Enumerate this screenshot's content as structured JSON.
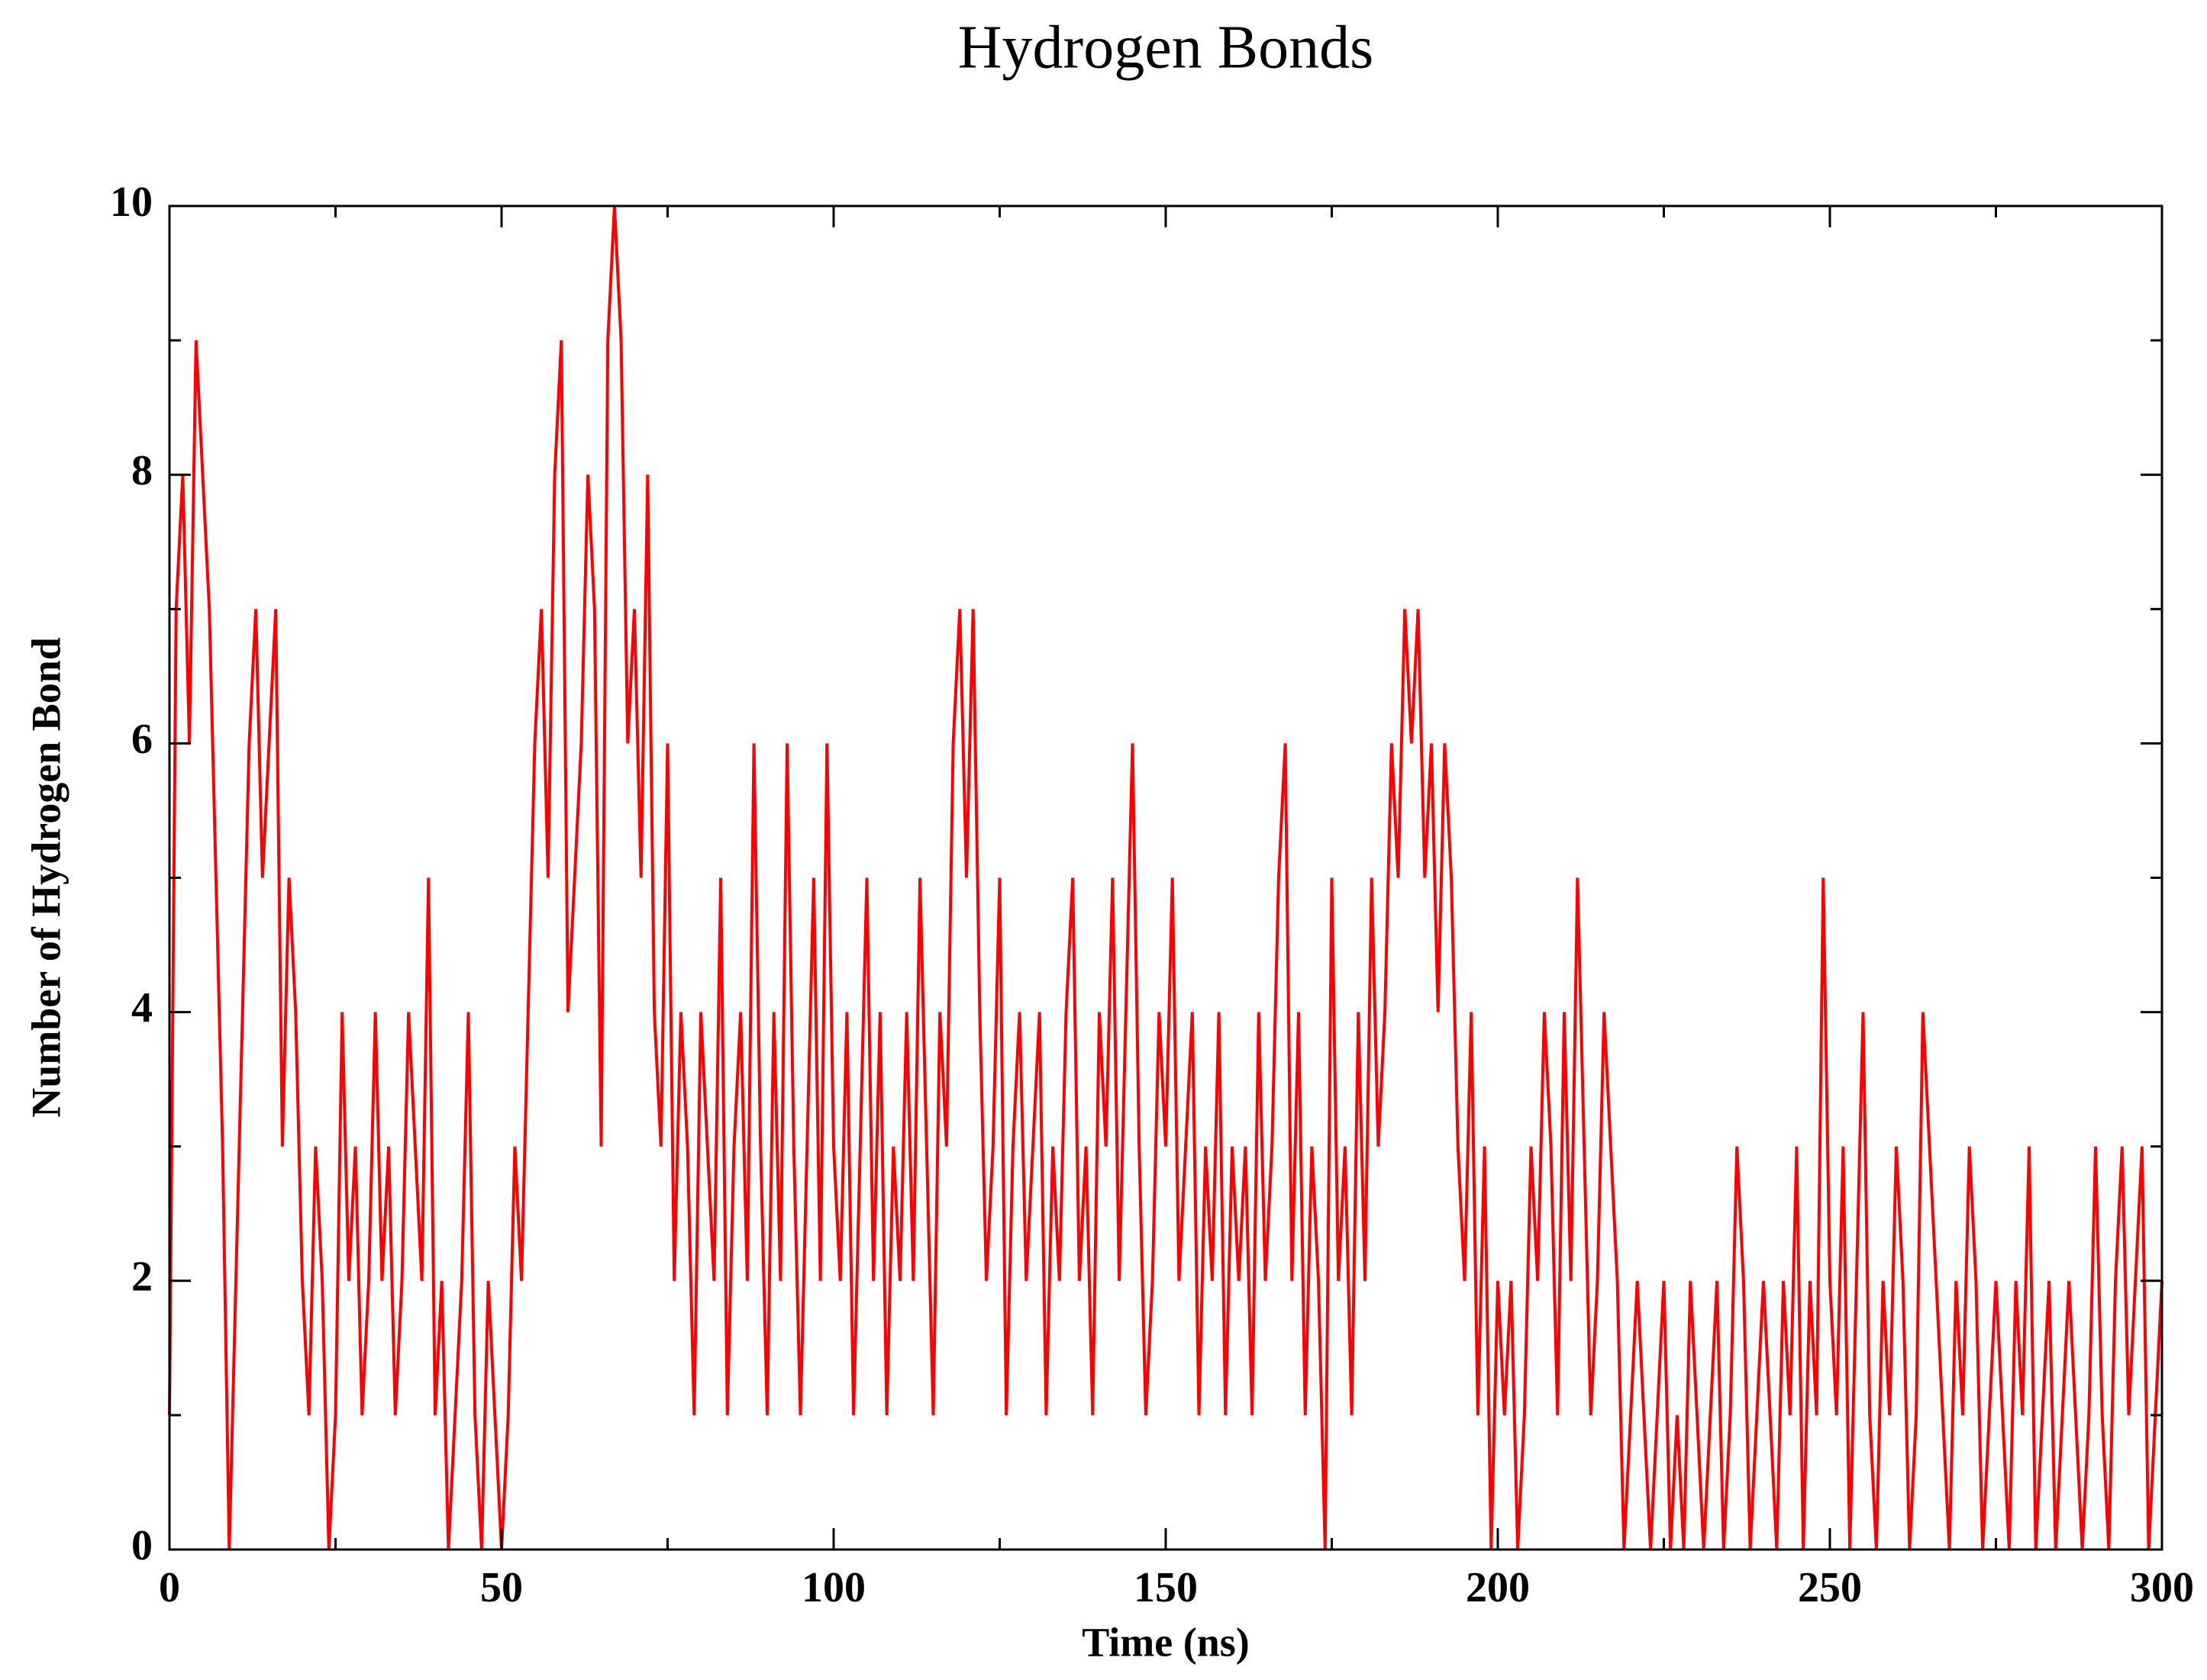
{
  "chart_data": {
    "type": "line",
    "title": "Hydrogen Bonds",
    "x_label": "Time (ns)",
    "y_label": "Number of Hydrogen Bond",
    "xlim": [
      0,
      300
    ],
    "ylim": [
      0,
      10
    ],
    "xticks": [
      0,
      50,
      100,
      150,
      200,
      250,
      300
    ],
    "yticks": [
      0,
      2,
      4,
      6,
      8,
      10
    ],
    "xminorticks": [
      25,
      75,
      125,
      175,
      225,
      275
    ],
    "yminorticks": [
      1,
      3,
      5,
      7,
      9
    ],
    "grid": false,
    "x": [
      0,
      1,
      2,
      3,
      4,
      5,
      6,
      7,
      8,
      9,
      10,
      11,
      12,
      13,
      14,
      15,
      16,
      17,
      18,
      19,
      20,
      21,
      22,
      23,
      24,
      25,
      26,
      27,
      28,
      29,
      30,
      31,
      32,
      33,
      34,
      35,
      36,
      37,
      38,
      39,
      40,
      41,
      42,
      43,
      44,
      45,
      46,
      47,
      48,
      49,
      50,
      51,
      52,
      53,
      54,
      55,
      56,
      57,
      58,
      59,
      60,
      61,
      62,
      63,
      64,
      65,
      66,
      67,
      68,
      69,
      70,
      71,
      72,
      73,
      74,
      75,
      76,
      77,
      78,
      79,
      80,
      81,
      82,
      83,
      84,
      85,
      86,
      87,
      88,
      89,
      90,
      91,
      92,
      93,
      94,
      95,
      96,
      97,
      98,
      99,
      100,
      101,
      102,
      103,
      104,
      105,
      106,
      107,
      108,
      109,
      110,
      111,
      112,
      113,
      114,
      115,
      116,
      117,
      118,
      119,
      120,
      121,
      122,
      123,
      124,
      125,
      126,
      127,
      128,
      129,
      130,
      131,
      132,
      133,
      134,
      135,
      136,
      137,
      138,
      139,
      140,
      141,
      142,
      143,
      144,
      145,
      146,
      147,
      148,
      149,
      150,
      151,
      152,
      153,
      154,
      155,
      156,
      157,
      158,
      159,
      160,
      161,
      162,
      163,
      164,
      165,
      166,
      167,
      168,
      169,
      170,
      171,
      172,
      173,
      174,
      175,
      176,
      177,
      178,
      179,
      180,
      181,
      182,
      183,
      184,
      185,
      186,
      187,
      188,
      189,
      190,
      191,
      192,
      193,
      194,
      195,
      196,
      197,
      198,
      199,
      200,
      201,
      202,
      203,
      204,
      205,
      206,
      207,
      208,
      209,
      210,
      211,
      212,
      213,
      214,
      215,
      216,
      217,
      218,
      219,
      220,
      221,
      222,
      223,
      224,
      225,
      226,
      227,
      228,
      229,
      230,
      231,
      232,
      233,
      234,
      235,
      236,
      237,
      238,
      239,
      240,
      241,
      242,
      243,
      244,
      245,
      246,
      247,
      248,
      249,
      250,
      251,
      252,
      253,
      254,
      255,
      256,
      257,
      258,
      259,
      260,
      261,
      262,
      263,
      264,
      265,
      266,
      267,
      268,
      269,
      270,
      271,
      272,
      273,
      274,
      275,
      276,
      277,
      278,
      279,
      280,
      281,
      282,
      283,
      284,
      285,
      286,
      287,
      288,
      289,
      290,
      291,
      292,
      293,
      294,
      295,
      296,
      297,
      298,
      299,
      300
    ],
    "series": [
      {
        "name": "Hydrogen Bonds",
        "color": "#ff0000",
        "values": [
          1,
          7,
          8,
          6,
          9,
          8,
          7,
          5,
          3,
          0,
          2,
          4,
          6,
          7,
          5,
          6,
          7,
          3,
          5,
          4,
          2,
          1,
          3,
          2,
          0,
          1,
          4,
          2,
          3,
          1,
          2,
          4,
          2,
          3,
          1,
          2,
          4,
          3,
          2,
          5,
          1,
          2,
          0,
          1,
          2,
          4,
          1,
          0,
          2,
          1,
          0,
          1,
          3,
          2,
          4,
          6,
          7,
          5,
          8,
          9,
          4,
          5,
          6,
          8,
          7,
          3,
          9,
          10,
          9,
          6,
          7,
          5,
          8,
          4,
          3,
          6,
          2,
          4,
          3,
          1,
          4,
          3,
          2,
          5,
          1,
          3,
          4,
          2,
          6,
          3,
          1,
          4,
          2,
          6,
          3,
          1,
          3,
          5,
          2,
          6,
          3,
          2,
          4,
          1,
          3,
          5,
          2,
          4,
          1,
          3,
          2,
          4,
          2,
          5,
          3,
          1,
          4,
          3,
          6,
          7,
          5,
          7,
          4,
          2,
          3,
          5,
          1,
          3,
          4,
          2,
          3,
          4,
          1,
          3,
          2,
          4,
          5,
          2,
          3,
          1,
          4,
          3,
          5,
          2,
          4,
          6,
          3,
          1,
          2,
          4,
          3,
          5,
          2,
          3,
          4,
          1,
          3,
          2,
          4,
          1,
          3,
          2,
          3,
          1,
          4,
          2,
          3,
          5,
          6,
          2,
          4,
          1,
          3,
          2,
          0,
          5,
          2,
          3,
          1,
          4,
          2,
          5,
          3,
          4,
          6,
          5,
          7,
          6,
          7,
          5,
          6,
          4,
          6,
          5,
          3,
          2,
          4,
          1,
          3,
          0,
          2,
          1,
          2,
          0,
          1,
          3,
          2,
          4,
          3,
          1,
          4,
          2,
          5,
          3,
          1,
          2,
          4,
          3,
          2,
          0,
          1,
          2,
          1,
          0,
          1,
          2,
          0,
          1,
          0,
          2,
          1,
          0,
          1,
          2,
          0,
          1,
          3,
          2,
          0,
          1,
          2,
          1,
          0,
          2,
          1,
          3,
          0,
          2,
          1,
          5,
          2,
          1,
          3,
          0,
          2,
          4,
          1,
          0,
          2,
          1,
          3,
          2,
          0,
          1,
          4,
          3,
          2,
          1,
          0,
          2,
          1,
          3,
          2,
          0,
          1,
          2,
          1,
          0,
          2,
          1,
          3,
          0,
          1,
          2,
          0,
          1,
          2,
          1,
          0,
          1,
          3,
          1,
          0,
          2,
          3,
          1,
          2,
          3,
          0,
          1,
          2
        ]
      }
    ]
  }
}
